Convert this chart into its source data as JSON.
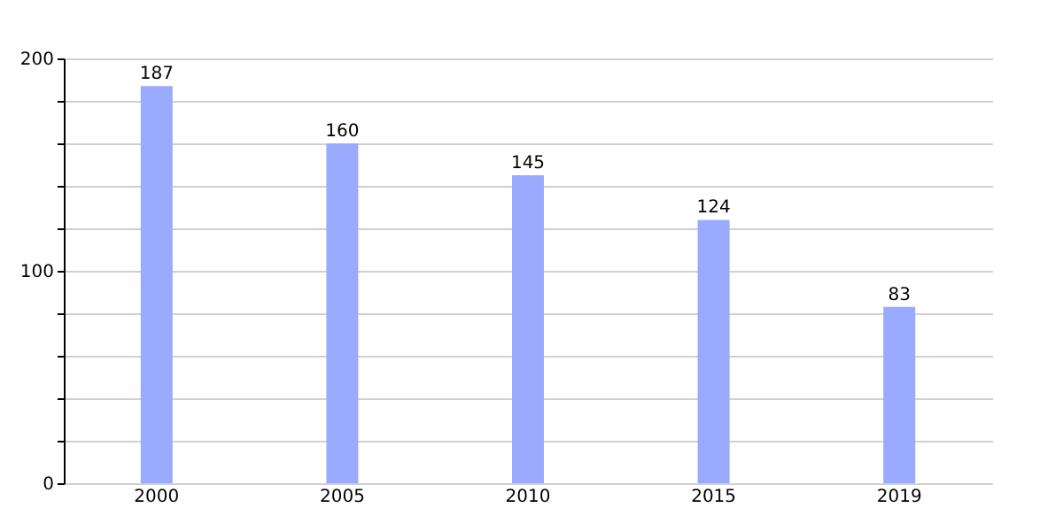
{
  "chart_data": {
    "type": "bar",
    "categories": [
      "2000",
      "2005",
      "2010",
      "2015",
      "2019"
    ],
    "values": [
      187,
      160,
      145,
      124,
      83
    ],
    "color": "#99aaff",
    "ylim": [
      0,
      200
    ],
    "yticks": [
      0,
      {
        "value": 20,
        "label": null
      },
      {
        "value": 40,
        "label": null
      },
      {
        "value": 60,
        "label": null
      },
      {
        "value": 80,
        "label": null
      },
      100,
      {
        "value": 120,
        "label": null
      },
      {
        "value": 140,
        "label": null
      },
      {
        "value": 160,
        "label": null
      },
      {
        "value": 180,
        "label": null
      },
      200
    ],
    "grid": true,
    "data_labels": true
  }
}
